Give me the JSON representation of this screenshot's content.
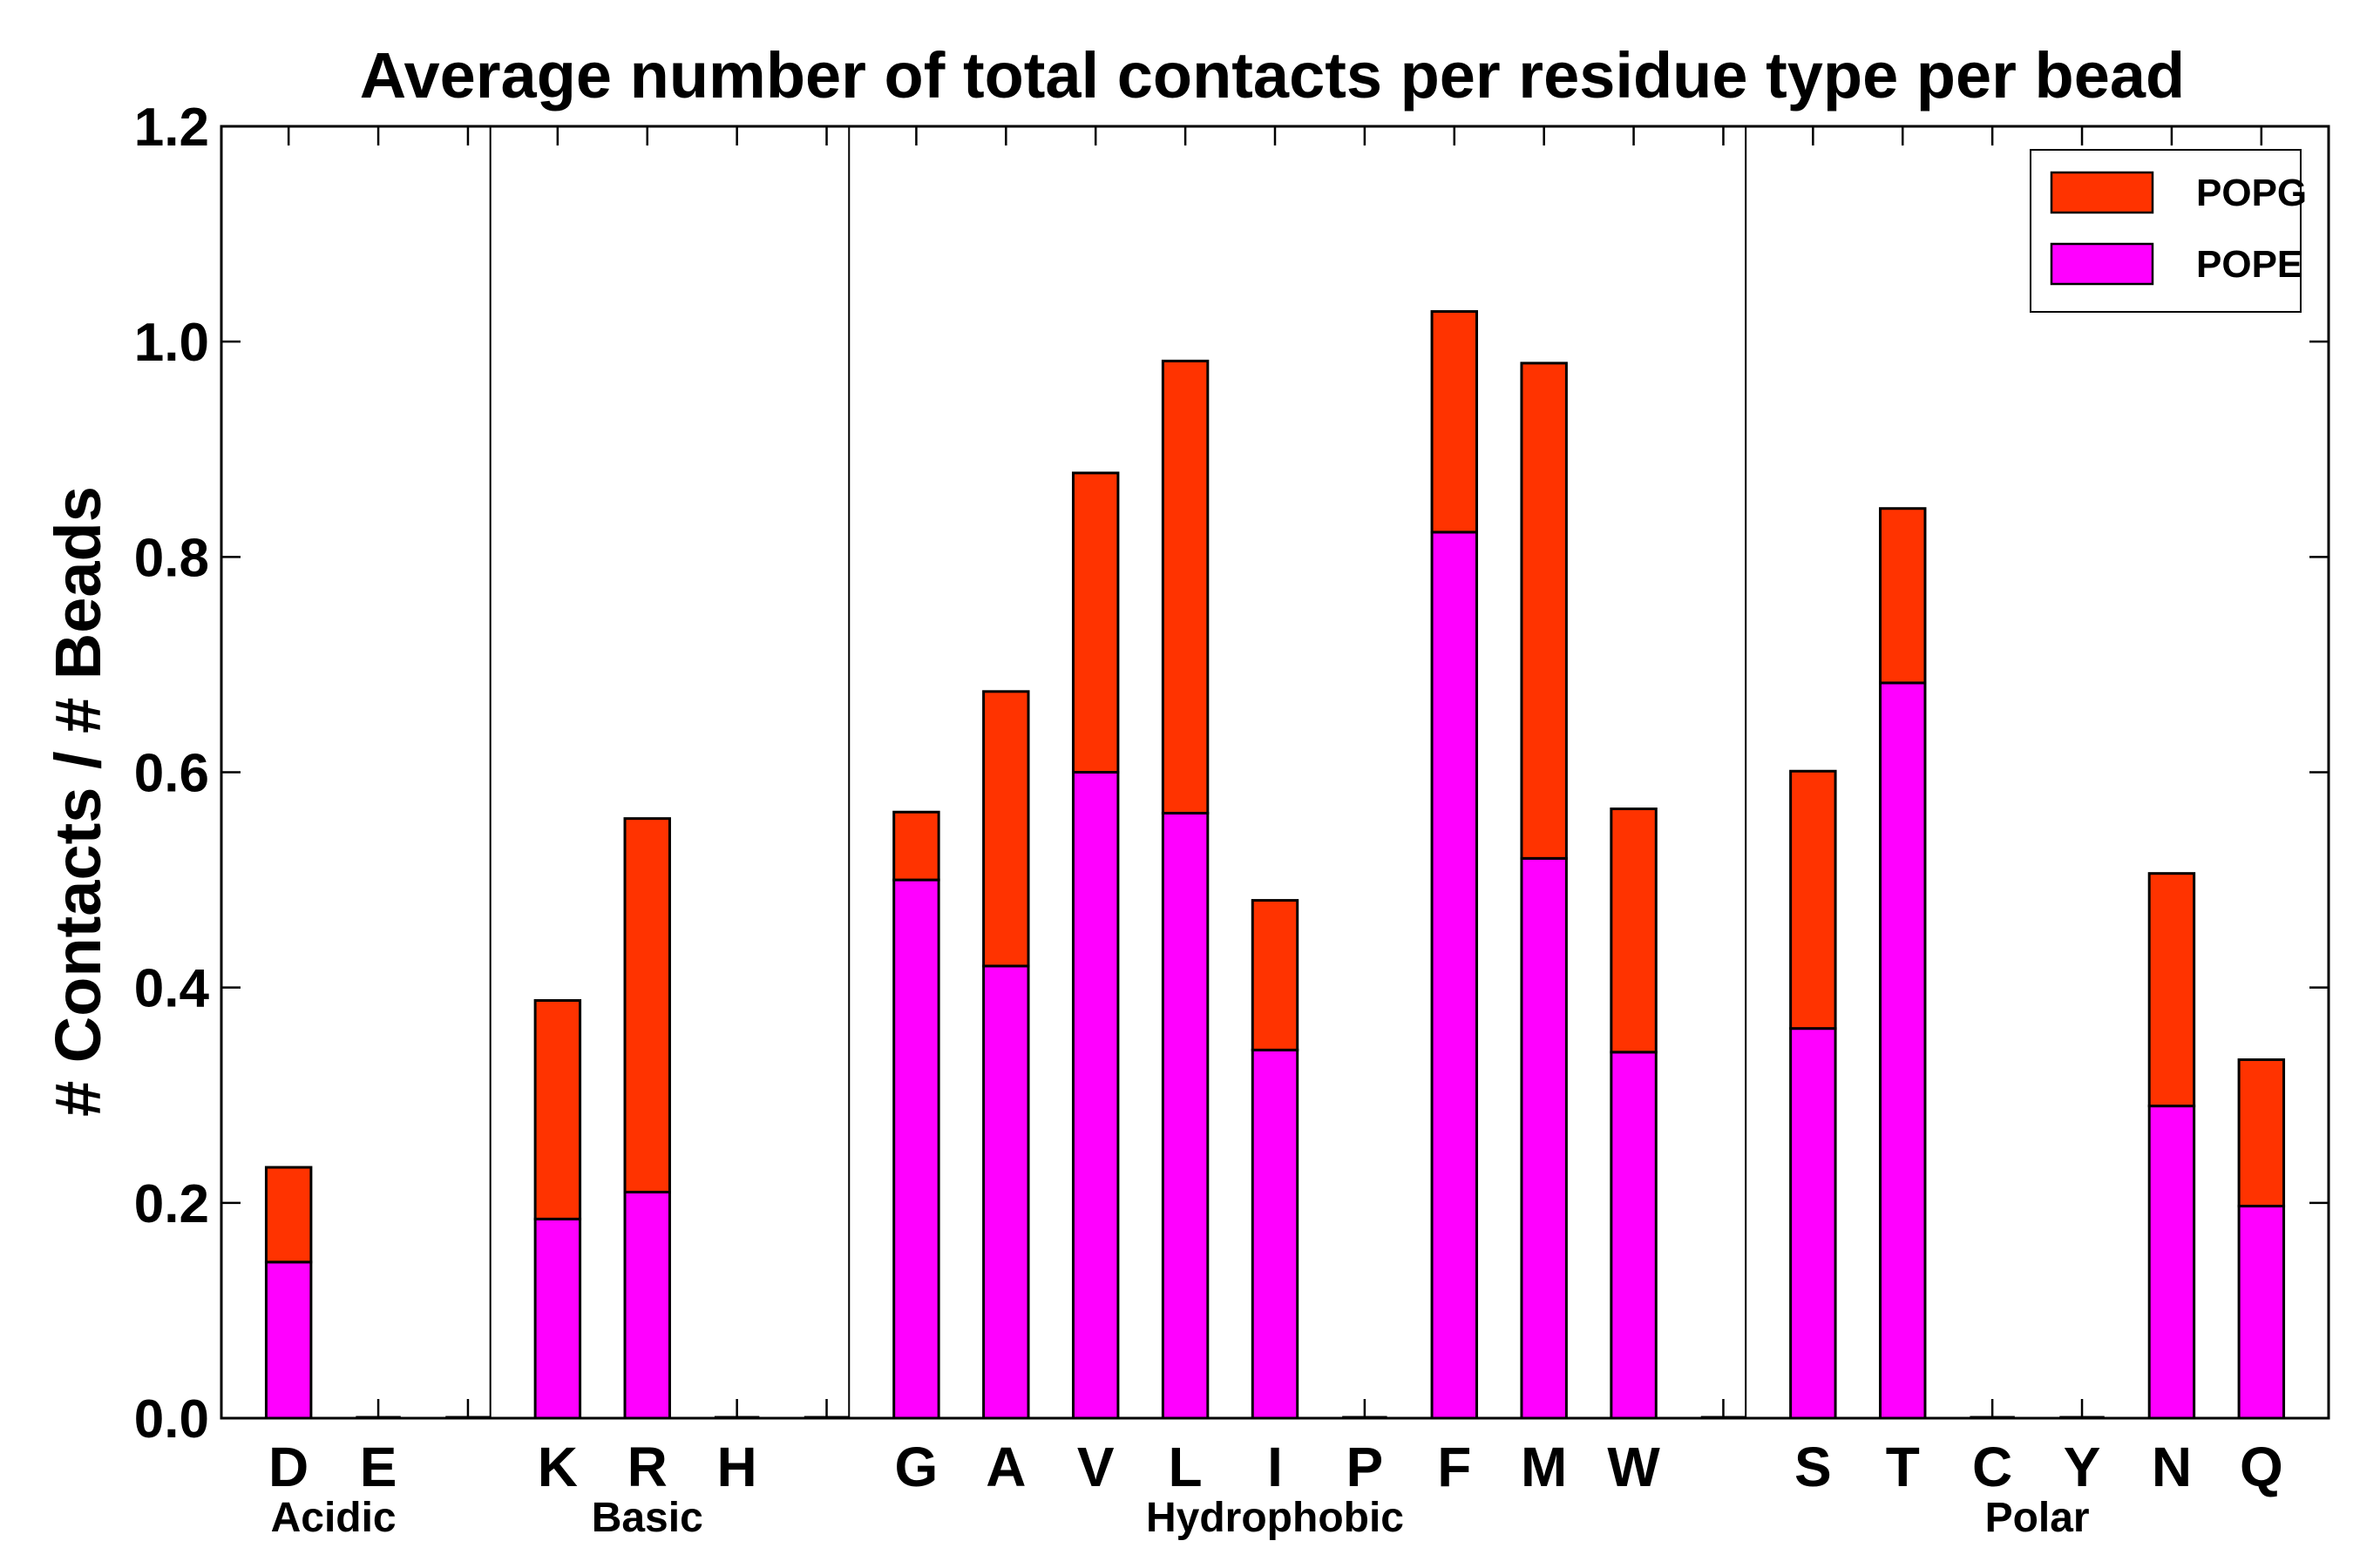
{
  "chart_data": {
    "type": "bar",
    "stacked": true,
    "title": "Average number of total contacts per residue type per bead",
    "xlabel": "",
    "ylabel": "# Contacts / # Beads",
    "ylim": [
      0,
      1.2
    ],
    "yticks": [
      "0.0",
      "0.2",
      "0.4",
      "0.6",
      "0.8",
      "1.0",
      "1.2"
    ],
    "categories": [
      "D",
      "E",
      "",
      "K",
      "R",
      "H",
      "",
      "G",
      "A",
      "V",
      "L",
      "I",
      "P",
      "F",
      "M",
      "W",
      "",
      "S",
      "T",
      "C",
      "Y",
      "N",
      "Q"
    ],
    "series": [
      {
        "name": "POPE",
        "color": "#ff00ff",
        "values": [
          0.145,
          0,
          0,
          0.185,
          0.21,
          0,
          0,
          0.5,
          0.42,
          0.6,
          0.562,
          0.342,
          0,
          0.823,
          0.52,
          0.34,
          0,
          0.362,
          0.683,
          0,
          0,
          0.29,
          0.197
        ]
      },
      {
        "name": "POPG",
        "color": "#ff3300",
        "values": [
          0.088,
          0,
          0,
          0.203,
          0.347,
          0,
          0,
          0.063,
          0.255,
          0.278,
          0.42,
          0.139,
          0,
          0.205,
          0.46,
          0.226,
          0,
          0.239,
          0.162,
          0,
          0,
          0.216,
          0.136
        ]
      }
    ],
    "groups": [
      {
        "label": "Acidic",
        "start": 0,
        "end": 1
      },
      {
        "label": "Basic",
        "start": 3,
        "end": 5
      },
      {
        "label": "Hydrophobic",
        "start": 7,
        "end": 15
      },
      {
        "label": "Polar",
        "start": 17,
        "end": 22
      }
    ],
    "separators_after": [
      2,
      6,
      16
    ],
    "legend": {
      "position": "top-right",
      "entries": [
        "POPG",
        "POPE"
      ]
    },
    "grid": false
  }
}
